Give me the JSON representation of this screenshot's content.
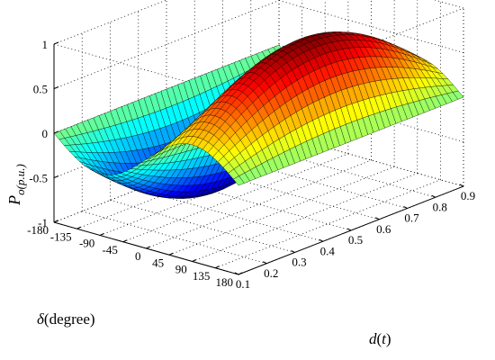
{
  "chart_data": {
    "type": "surface",
    "title": "",
    "zlabel": {
      "main": "P",
      "sub": "o(p.u.)"
    },
    "xlabel": {
      "prefix": "δ",
      "rest": "(degree)"
    },
    "ylabel": {
      "prefix": "d",
      "rest": "(",
      "var": "t",
      "close": ")"
    },
    "x_axis": {
      "name": "delta_degree",
      "range": [
        -180,
        180
      ],
      "ticks": [
        180,
        135,
        90,
        45,
        0,
        -45,
        -90,
        -135,
        -180
      ],
      "tick_labels": [
        "180",
        "135",
        "90",
        "45",
        "0",
        "-45",
        "-90",
        "-135",
        "-180"
      ]
    },
    "y_axis": {
      "name": "d_t",
      "range": [
        0.1,
        0.9
      ],
      "ticks": [
        0.1,
        0.2,
        0.3,
        0.4,
        0.5,
        0.6,
        0.7,
        0.8,
        0.9
      ],
      "tick_labels": [
        "0.1",
        "0.2",
        "0.3",
        "0.4",
        "0.5",
        "0.6",
        "0.7",
        "0.8",
        "0.9"
      ]
    },
    "z_axis": {
      "range": [
        -1,
        1
      ],
      "ticks": [
        -1,
        -0.5,
        0,
        0.5,
        1
      ],
      "tick_labels": [
        "-1",
        "-0.5",
        "0",
        "0.5",
        "1"
      ]
    },
    "function": "P = sin(delta) * sin(pi * d)",
    "grid": true,
    "box": "dotted",
    "colormap": "jet",
    "mesh": {
      "nx": 37,
      "ny": 41
    }
  }
}
